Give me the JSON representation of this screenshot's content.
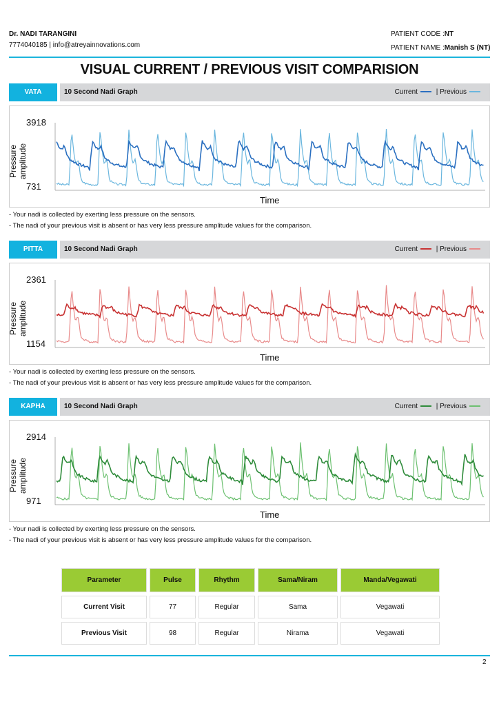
{
  "header": {
    "doctor": "Dr. NADI TARANGINI",
    "contact": "7774040185 | info@atreyainnovations.com",
    "patient_code_label": "PATIENT CODE :",
    "patient_code": "NT",
    "patient_name_label": "PATIENT NAME :",
    "patient_name": "Manish S (NT)"
  },
  "title": "VISUAL CURRENT / PREVIOUS VISIT COMPARISION",
  "sections": [
    {
      "name": "VATA",
      "graph_title": "10 Second Nadi Graph",
      "current_label": "Current",
      "sep": "|",
      "previous_label": "Previous",
      "current_color": "#2a6fc0",
      "previous_color": "#6ab6de",
      "ymax": "3918",
      "ymin": "731",
      "ylabel": "Pressure amplitude",
      "xlabel": "Time",
      "note1": "- Your nadi is collected by exerting less pressure on the sensors.",
      "note2": "- The nadi of your previous visit is absent or has very less pressure amplitude values for the comparison."
    },
    {
      "name": "PITTA",
      "graph_title": "10 Second Nadi Graph",
      "current_label": "Current",
      "sep": "|",
      "previous_label": "Previous",
      "current_color": "#c83232",
      "previous_color": "#e88a8a",
      "ymax": "2361",
      "ymin": "1154",
      "ylabel": "Pressure amplitude",
      "xlabel": "Time",
      "note1": "- Your nadi is collected by exerting less pressure on the sensors.",
      "note2": "- The nadi of your previous visit is absent or has very less pressure amplitude values for the comparison."
    },
    {
      "name": "KAPHA",
      "graph_title": "10 Second Nadi Graph",
      "current_label": "Current",
      "sep": "|",
      "previous_label": "Previous",
      "current_color": "#2e8b3a",
      "previous_color": "#6cc070",
      "ymax": "2914",
      "ymin": "971",
      "ylabel": "Pressure amplitude",
      "xlabel": "Time",
      "note1": "- Your nadi is collected by exerting less pressure on the sensors.",
      "note2": "- The nadi of your previous visit is absent or has very less pressure amplitude values for the comparison."
    }
  ],
  "table": {
    "headers": [
      "Parameter",
      "Pulse",
      "Rhythm",
      "Sama/Niram",
      "Manda/Vegawati"
    ],
    "rows": [
      [
        "Current Visit",
        "77",
        "Regular",
        "Sama",
        "Vegawati"
      ],
      [
        "Previous Visit",
        "98",
        "Regular",
        "Nirama",
        "Vegawati"
      ]
    ]
  },
  "page_number": "2"
}
